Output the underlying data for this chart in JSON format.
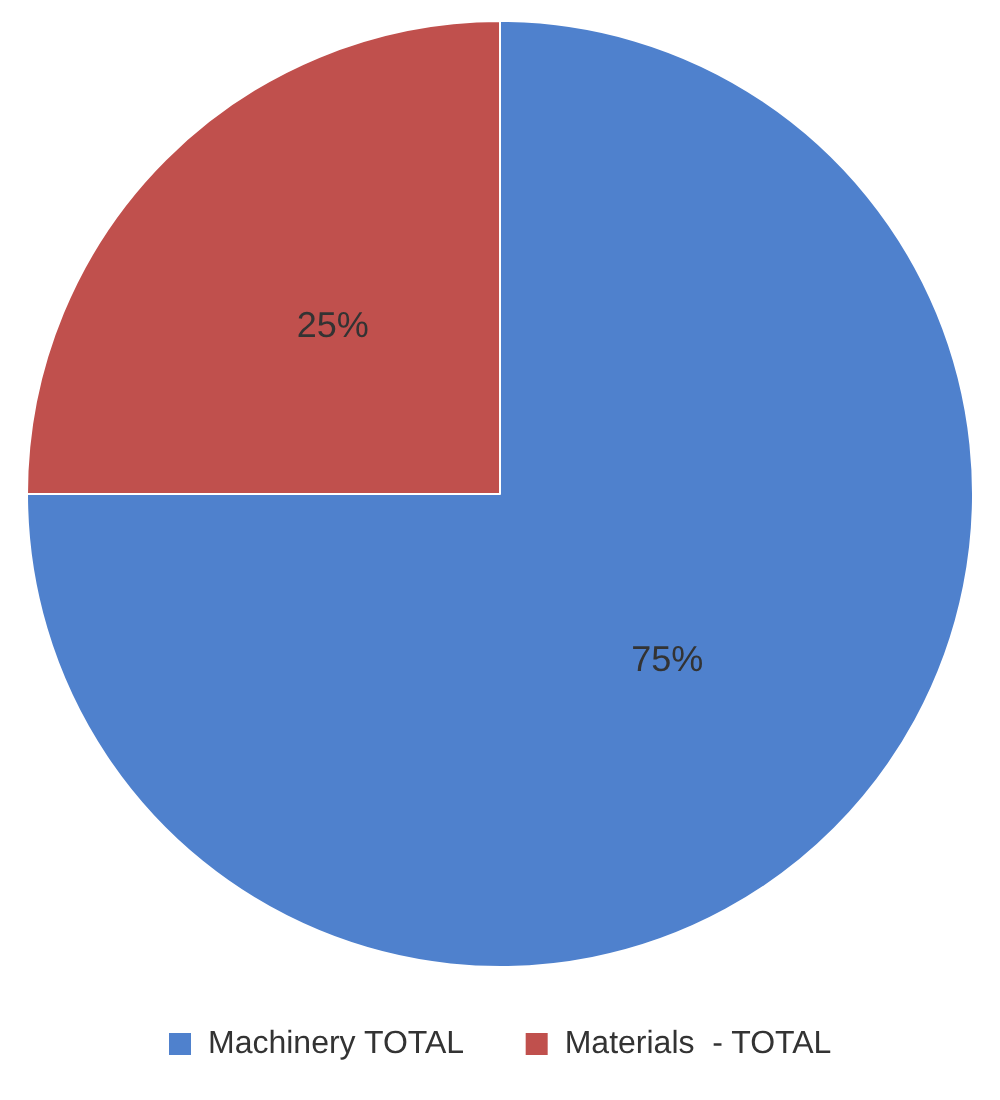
{
  "chart_data": {
    "type": "pie",
    "categories": [
      "Machinery TOTAL",
      "Materials  - TOTAL"
    ],
    "values": [
      75,
      25
    ],
    "colors": [
      "#4f81cd",
      "#c0504d"
    ],
    "value_labels": [
      "75%",
      "25%"
    ],
    "legend": "bottom"
  }
}
